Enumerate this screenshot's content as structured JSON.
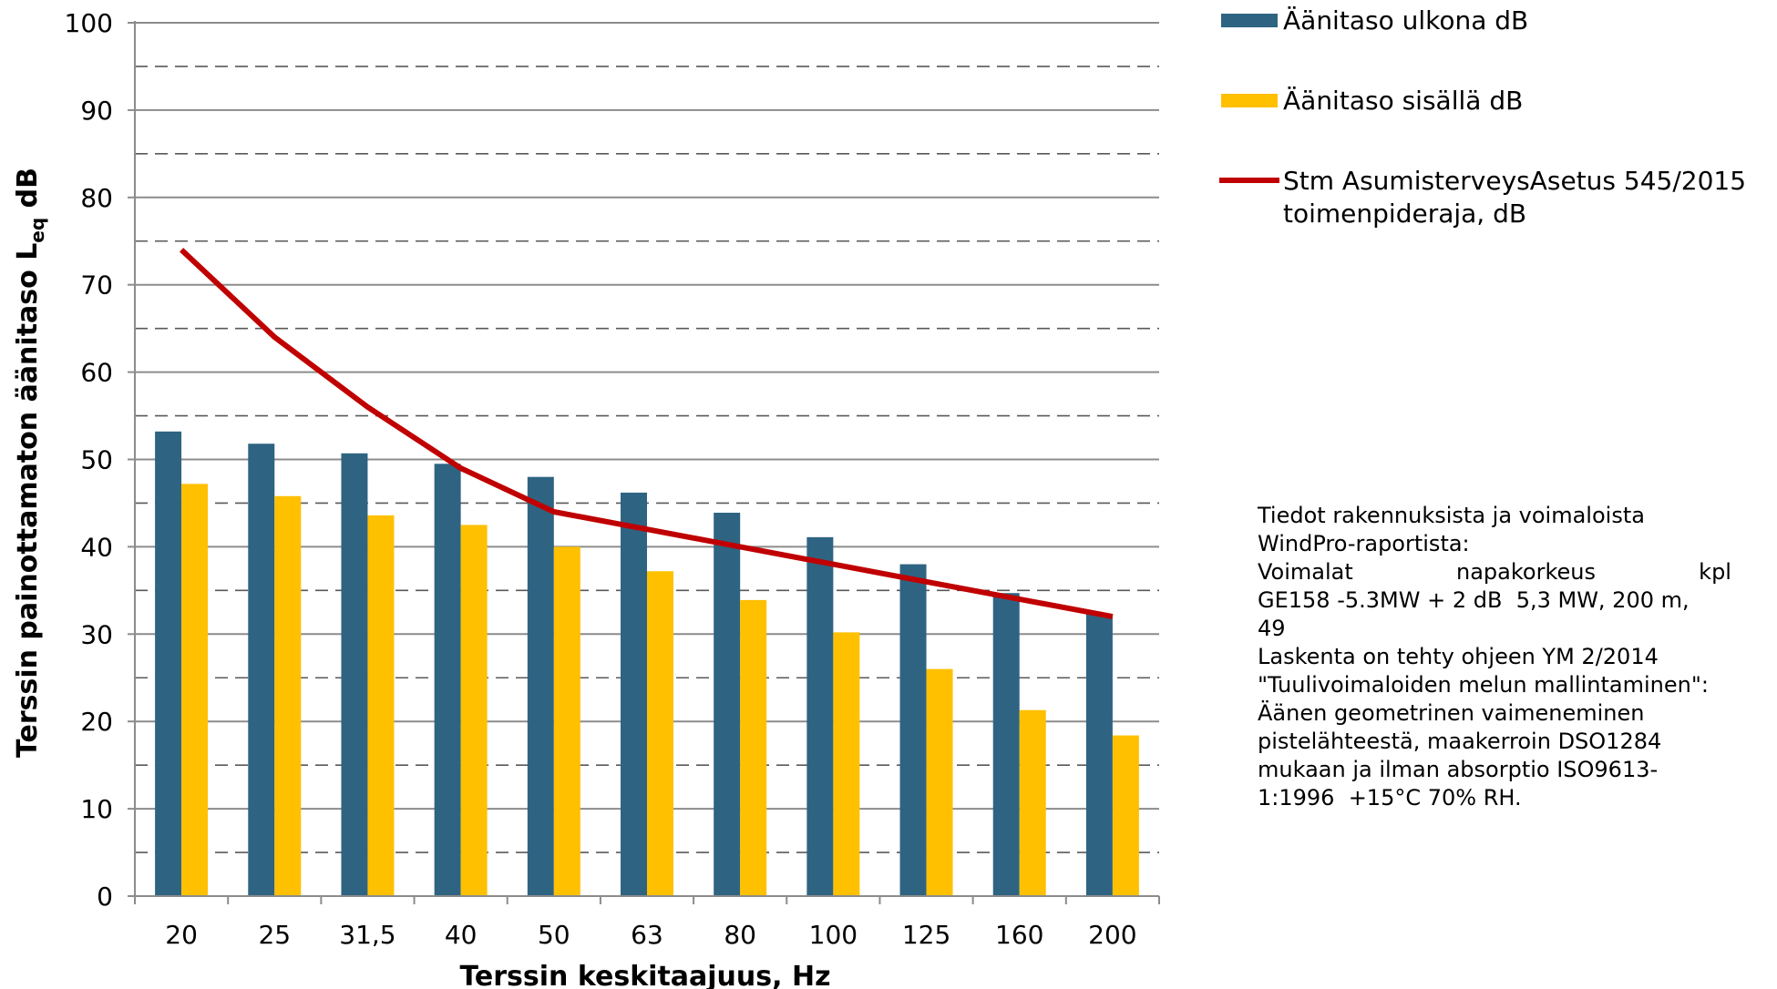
{
  "chart_data": {
    "type": "bar",
    "xlabel": "Terssin keskitaajuus, Hz",
    "ylabel_parts": {
      "main": "Terssin painottamaton äänitaso L",
      "sub": "eq",
      "unit": " dB"
    },
    "categories": [
      "20",
      "25",
      "31,5",
      "40",
      "50",
      "63",
      "80",
      "100",
      "125",
      "160",
      "200"
    ],
    "ylim": [
      0,
      100
    ],
    "yticks": [
      0,
      10,
      20,
      30,
      40,
      50,
      60,
      70,
      80,
      90,
      100
    ],
    "grid": {
      "major": "solid",
      "minor": "dashed"
    },
    "series": [
      {
        "name": "Äänitaso ulkona dB",
        "kind": "bar",
        "color": "#2e6482",
        "values": [
          53.2,
          51.8,
          50.7,
          49.5,
          48.0,
          46.2,
          43.9,
          41.1,
          38.0,
          34.7,
          32.3
        ]
      },
      {
        "name": "Äänitaso sisällä dB",
        "kind": "bar",
        "color": "#ffc000",
        "values": [
          47.2,
          45.8,
          43.6,
          42.5,
          40.0,
          37.2,
          33.9,
          30.2,
          26.0,
          21.3,
          18.4
        ]
      },
      {
        "name_lines": [
          "Stm AsumisterveysAsetus 545/2015",
          "toimenpideraja, dB"
        ],
        "kind": "line",
        "color": "#c00000",
        "values": [
          74,
          64,
          56,
          49,
          44,
          42,
          40,
          38,
          36,
          34,
          32
        ]
      }
    ],
    "legend_position": "top-right"
  },
  "note": {
    "lines": [
      "Tiedot rakennuksista ja voimaloista",
      "WindPro-raportista:"
    ],
    "justified_line": [
      "Voimalat",
      "napakorkeus",
      "kpl"
    ],
    "rest_lines": [
      "GE158 -5.3MW + 2 dB  5,3 MW, 200 m,",
      "49",
      "Laskenta on tehty ohjeen YM 2/2014",
      "\"Tuulivoimaloiden melun mallintaminen\":",
      "Äänen geometrinen vaimeneminen",
      "pistelähteestä, maakerroin DSO1284",
      "mukaan ja ilman absorptio ISO9613-",
      "1:1996  +15°C 70% RH."
    ]
  }
}
